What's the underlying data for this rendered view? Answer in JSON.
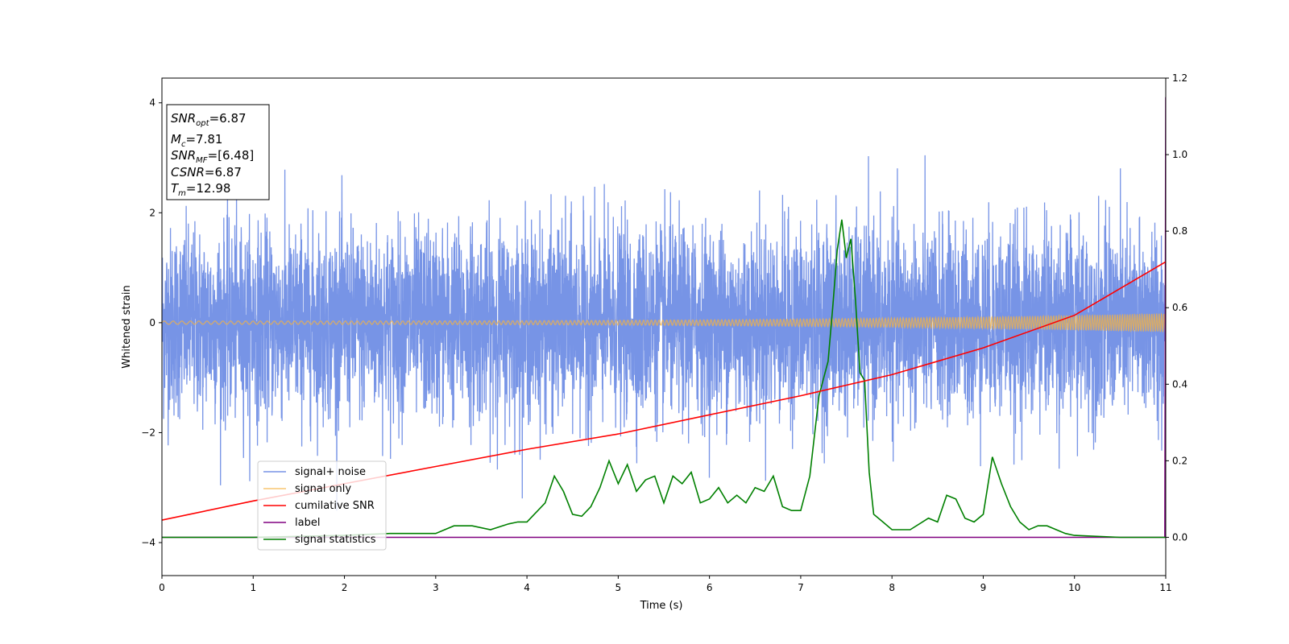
{
  "chart_data": {
    "type": "line",
    "xlabel": "Time (s)",
    "ylabel": "Whitened strain",
    "xlim": [
      0,
      11
    ],
    "ylim": [
      -4.6,
      4.45
    ],
    "y2lim": [
      -0.1,
      1.2
    ],
    "grid": false,
    "legend_position": "lower-left",
    "x_ticks": [
      "0",
      "1",
      "2",
      "3",
      "4",
      "5",
      "6",
      "7",
      "8",
      "9",
      "10",
      "11"
    ],
    "y_ticks": [
      "−4",
      "−2",
      "0",
      "2",
      "4"
    ],
    "y2_ticks": [
      "0.0",
      "0.2",
      "0.4",
      "0.6",
      "0.8",
      "1.0",
      "1.2"
    ],
    "info_box": {
      "snr_opt": "6.87",
      "mc": "7.81",
      "snr_mf": "[6.48]",
      "csnr": "6.87",
      "tm": "12.98"
    },
    "series": [
      {
        "name": "signal+ noise",
        "axis": "left",
        "color": "#2e5ad9",
        "description_values": "noise band approx -2 to 2, spikes up to about 3.7 and down to about -4.1",
        "noise_sigma": 0.85
      },
      {
        "name": "signal only",
        "axis": "left",
        "color": "#f5b342",
        "amplitude_start": 0.03,
        "amplitude_end": 0.17
      },
      {
        "name": "cumilative SNR",
        "axis": "right",
        "color": "#ff0000",
        "x": [
          0,
          1,
          2,
          3,
          4,
          5,
          6,
          7,
          8,
          9,
          10,
          11
        ],
        "y": [
          0.045,
          0.095,
          0.14,
          0.185,
          0.23,
          0.27,
          0.32,
          0.37,
          0.425,
          0.495,
          0.58,
          0.72
        ]
      },
      {
        "name": "label",
        "axis": "right",
        "color": "#800080",
        "x": [
          0,
          10.99,
          11
        ],
        "y": [
          0.0,
          0.0,
          1.15
        ]
      },
      {
        "name": "signal statistics",
        "axis": "right",
        "color": "#008000",
        "x": [
          0,
          1,
          2,
          2.5,
          3,
          3.2,
          3.4,
          3.6,
          3.8,
          3.9,
          4.0,
          4.1,
          4.2,
          4.3,
          4.4,
          4.5,
          4.6,
          4.7,
          4.8,
          4.9,
          5.0,
          5.1,
          5.2,
          5.3,
          5.4,
          5.5,
          5.6,
          5.7,
          5.8,
          5.9,
          6.0,
          6.1,
          6.2,
          6.3,
          6.4,
          6.5,
          6.6,
          6.7,
          6.8,
          6.9,
          7.0,
          7.1,
          7.2,
          7.3,
          7.35,
          7.4,
          7.45,
          7.5,
          7.55,
          7.6,
          7.65,
          7.7,
          7.75,
          7.8,
          7.9,
          8.0,
          8.2,
          8.4,
          8.5,
          8.6,
          8.7,
          8.8,
          8.9,
          9.0,
          9.1,
          9.2,
          9.3,
          9.4,
          9.5,
          9.6,
          9.7,
          9.9,
          10.0,
          10.5,
          11
        ],
        "y": [
          0.0,
          0.0,
          0.005,
          0.01,
          0.01,
          0.03,
          0.03,
          0.02,
          0.035,
          0.04,
          0.04,
          0.065,
          0.09,
          0.16,
          0.12,
          0.06,
          0.055,
          0.08,
          0.13,
          0.2,
          0.14,
          0.19,
          0.12,
          0.15,
          0.16,
          0.09,
          0.16,
          0.14,
          0.17,
          0.09,
          0.1,
          0.13,
          0.09,
          0.11,
          0.09,
          0.13,
          0.12,
          0.16,
          0.08,
          0.07,
          0.07,
          0.16,
          0.37,
          0.46,
          0.6,
          0.75,
          0.83,
          0.73,
          0.78,
          0.62,
          0.43,
          0.41,
          0.17,
          0.06,
          0.04,
          0.02,
          0.02,
          0.05,
          0.04,
          0.11,
          0.1,
          0.05,
          0.04,
          0.06,
          0.21,
          0.14,
          0.08,
          0.04,
          0.02,
          0.03,
          0.03,
          0.01,
          0.005,
          0.0,
          0.0
        ]
      }
    ]
  }
}
